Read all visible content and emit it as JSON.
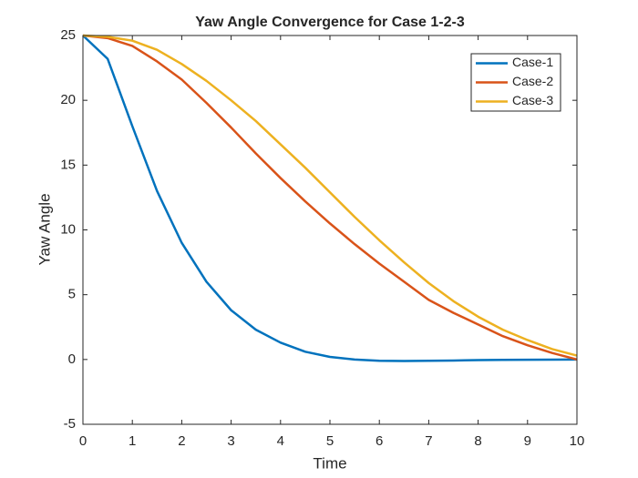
{
  "chart_data": {
    "type": "line",
    "title": "Yaw Angle Convergence for Case 1-2-3",
    "x_label": "Time",
    "y_label": "Yaw Angle",
    "x": [
      0,
      0.5,
      1,
      1.5,
      2,
      2.5,
      3,
      3.5,
      4,
      4.5,
      5,
      5.5,
      6,
      6.5,
      7,
      7.5,
      8,
      8.5,
      9,
      9.5,
      10
    ],
    "series": [
      {
        "name": "Case-1",
        "color": "#0072bd",
        "values": [
          25,
          23.2,
          18,
          13,
          9,
          6,
          3.8,
          2.3,
          1.3,
          0.6,
          0.2,
          0,
          -0.1,
          -0.12,
          -0.1,
          -0.08,
          -0.05,
          -0.03,
          -0.02,
          -0.01,
          0
        ]
      },
      {
        "name": "Case-2",
        "color": "#d95319",
        "values": [
          25,
          24.8,
          24.2,
          23.0,
          21.6,
          19.8,
          17.9,
          15.9,
          14.0,
          12.2,
          10.5,
          8.9,
          7.4,
          6.0,
          4.6,
          3.6,
          2.7,
          1.8,
          1.1,
          0.5,
          0
        ]
      },
      {
        "name": "Case-3",
        "color": "#edb120",
        "values": [
          25,
          24.9,
          24.6,
          23.9,
          22.8,
          21.5,
          20.0,
          18.4,
          16.6,
          14.8,
          12.9,
          11.0,
          9.2,
          7.5,
          5.9,
          4.5,
          3.3,
          2.3,
          1.5,
          0.8,
          0.3
        ]
      }
    ],
    "xlim": [
      0,
      10
    ],
    "xticks": [
      0,
      1,
      2,
      3,
      4,
      5,
      6,
      7,
      8,
      9,
      10
    ],
    "ylim": [
      -5,
      25
    ],
    "yticks": [
      -5,
      0,
      5,
      10,
      15,
      20,
      25
    ],
    "legend": "top-right",
    "grid": false
  }
}
